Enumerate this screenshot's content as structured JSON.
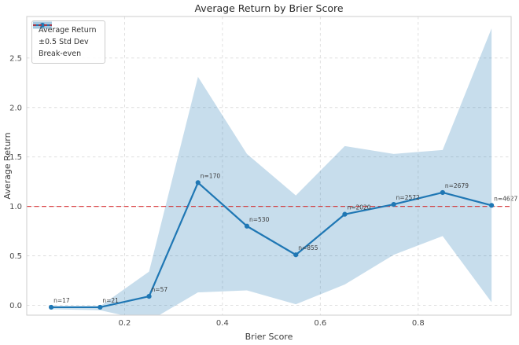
{
  "title": "Average Return by Brier Score",
  "xlabel": "Brier Score",
  "ylabel": "Average Return",
  "legend": {
    "average_return": "Average Return",
    "std_dev": "±0.5 Std Dev",
    "break_even": "Break-even"
  },
  "colors": {
    "line": "#1f77b4",
    "band_fill": "#1f77b4",
    "band_opacity": "0.25",
    "legend_band_opacity": "0.4",
    "breakeven": "#d62728",
    "grid": "#dcdcdc",
    "spine": "#cccccc",
    "title_text": "#2b2b2b",
    "tick_text": "#4a4a4a",
    "annotation_text": "#3c3c3c"
  },
  "chart_data": {
    "type": "line",
    "title": "Average Return by Brier Score",
    "xlabel": "Brier Score",
    "ylabel": "Average Return",
    "x": [
      0.05,
      0.15,
      0.25,
      0.35,
      0.45,
      0.55,
      0.65,
      0.75,
      0.85,
      0.95
    ],
    "series": [
      {
        "name": "Average Return",
        "values": [
          -0.02,
          -0.02,
          0.09,
          1.24,
          0.8,
          0.51,
          0.92,
          1.02,
          1.14,
          1.01
        ]
      }
    ],
    "band": {
      "name": "±0.5 Std Dev",
      "upper": [
        -0.01,
        -0.01,
        0.34,
        2.31,
        1.53,
        1.11,
        1.61,
        1.53,
        1.57,
        2.8
      ],
      "lower": [
        -0.04,
        -0.05,
        -0.16,
        0.13,
        0.15,
        0.01,
        0.21,
        0.51,
        0.7,
        0.03
      ]
    },
    "point_labels": [
      "n=17",
      "n=21",
      "n=57",
      "n=170",
      "n=530",
      "n=855",
      "n=2020",
      "n=2572",
      "n=2679",
      "n=4627"
    ],
    "breakeven_y": 1.0,
    "x_ticks": [
      0.2,
      0.4,
      0.6,
      0.8
    ],
    "y_ticks": [
      0.0,
      0.5,
      1.0,
      1.5,
      2.0,
      2.5
    ],
    "xlim": [
      0.0,
      0.99
    ],
    "ylim": [
      -0.1,
      2.92
    ],
    "grid": true,
    "legend_position": "upper left"
  }
}
